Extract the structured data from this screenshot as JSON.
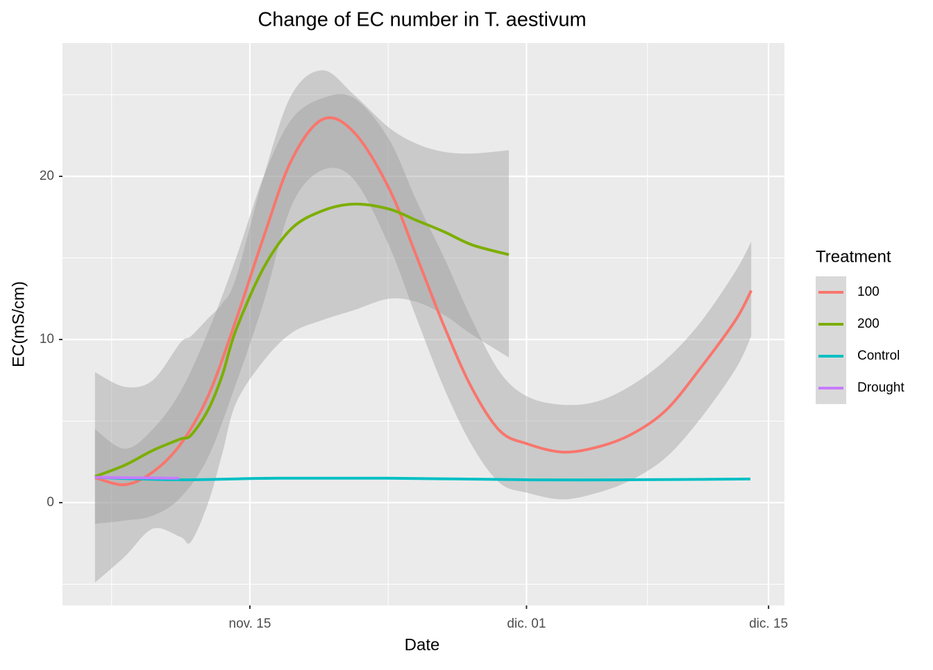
{
  "chart_data": {
    "type": "smooth",
    "title": "Change of EC number in T. aestivum",
    "x_label": "Date",
    "y_label": "EC(mS/cm)",
    "legend_title": "Treatment",
    "legend_position": "right",
    "grid": true,
    "xlim": [
      4.16,
      45.92
    ],
    "xticks": [
      {
        "value": 15,
        "label": "nov. 15"
      },
      {
        "value": 31,
        "label": "dic. 01"
      },
      {
        "value": 45,
        "label": "dic. 15"
      }
    ],
    "xminor": [
      7,
      23,
      38
    ],
    "ylim": [
      -6.3,
      28.17
    ],
    "yticks": [
      0,
      10,
      20
    ],
    "yminor": [
      -5,
      5,
      15,
      25
    ],
    "band_color": "#999999",
    "series": [
      {
        "name": "100",
        "color": "#F8766D",
        "x": [
          6.04,
          7.77,
          9.38,
          10.98,
          12.59,
          14.2,
          15.8,
          17.41,
          19.22,
          21.02,
          23.03,
          24.64,
          26.24,
          27.85,
          29.46,
          31.06,
          33.07,
          35.08,
          37.09,
          39.1,
          41.1,
          43.1,
          44.0
        ],
        "values": [
          1.53,
          1.1,
          1.87,
          3.57,
          6.55,
          11.2,
          16.3,
          21.0,
          23.5,
          22.7,
          19.3,
          15.1,
          10.8,
          7.0,
          4.4,
          3.6,
          3.1,
          3.4,
          4.2,
          5.7,
          8.3,
          11.2,
          13.0
        ],
        "upper": [
          4.5,
          3.3,
          4.5,
          6.8,
          10.5,
          15,
          20,
          23.5,
          24.8,
          24.8,
          22.3,
          18.5,
          15,
          11.2,
          8,
          6.5,
          6,
          6.2,
          7.2,
          8.8,
          11.1,
          14.2,
          16
        ],
        "lower": [
          -1.3,
          -1.1,
          -0.8,
          0.3,
          2.8,
          7.3,
          12.3,
          18.2,
          20.4,
          19.8,
          15.8,
          11.3,
          7,
          3.5,
          1.2,
          0.6,
          0.2,
          0.6,
          1.4,
          2.8,
          5.2,
          8.2,
          10.2
        ]
      },
      {
        "name": "200",
        "color": "#7CAE00",
        "x": [
          6.04,
          7.77,
          9.38,
          10.98,
          11.59,
          12.59,
          13.4,
          14.2,
          15.8,
          17.41,
          19.22,
          21.02,
          23.03,
          24.64,
          26.24,
          27.85,
          29.98
        ],
        "values": [
          1.6,
          2.3,
          3.2,
          3.9,
          4.13,
          5.7,
          7.8,
          10.6,
          14.4,
          16.8,
          17.9,
          18.3,
          18.0,
          17.3,
          16.6,
          15.8,
          15.2
        ],
        "upper": [
          8,
          7.1,
          7.5,
          9.8,
          10.2,
          11.3,
          12.2,
          13.8,
          20,
          25,
          26.5,
          25,
          23,
          22,
          21.5,
          21.4,
          21.6
        ],
        "lower": [
          -4.9,
          -3.3,
          -1.6,
          -2.1,
          -2.4,
          0,
          3,
          6.1,
          8.7,
          10.4,
          11.2,
          11.8,
          12.5,
          12.3,
          11.5,
          10.3,
          8.9
        ]
      },
      {
        "name": "Control",
        "color": "#00BFC4",
        "x": [
          6.04,
          10.94,
          16.57,
          22.99,
          31.02,
          36.64,
          43.95
        ],
        "values": [
          1.55,
          1.4,
          1.5,
          1.5,
          1.4,
          1.4,
          1.45
        ]
      },
      {
        "name": "Drought",
        "color": "#C77CFF",
        "x": [
          6.04,
          8.5,
          10.9
        ],
        "values": [
          1.55,
          1.52,
          1.5
        ]
      }
    ]
  }
}
